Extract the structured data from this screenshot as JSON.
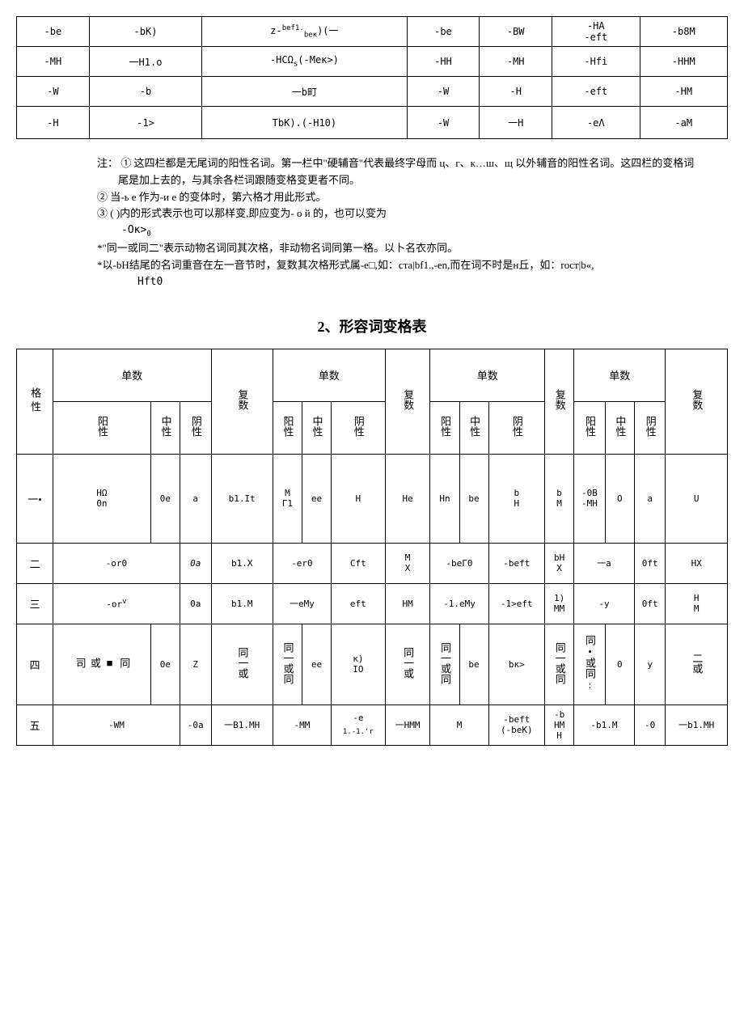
{
  "table1": {
    "rows": [
      [
        "-be",
        "-bK)",
        "z-<sup>bef1.</sup><sub>beк</sub>)(一",
        "-be",
        "-BW",
        "-HA\n-eft",
        "-b8M"
      ],
      [
        "-MH",
        "一H1.o",
        "-HCΩ<sub>s</sub>(-Meк>)",
        "-HH",
        "-MH",
        "-Hfi",
        "-HHM"
      ],
      [
        "-W",
        "-b",
        "一b町",
        "-W",
        "-H",
        "-eft",
        "-HM"
      ],
      [
        "-H",
        "-1>",
        "TbK).(-H10)",
        "-W",
        "一H",
        "-eΛ",
        "-aM"
      ]
    ]
  },
  "notes": {
    "n1": "注：  ① 这四栏都是无尾词的阳性名词。第一栏中\"硬辅音\"代表最终字母而 ц、г、к…ш、щ 以外辅音的阳性名词。这四栏的变格词尾是加上去的，与其余各栏词跟随变格变更者不同。",
    "n2": "② 当-ь е 作为-и е 的变体时，第六格才用此形式。",
    "n3": "③ ( )内的形式表示也可以那样变,即应变为- о й 的，也可以变为",
    "n3b": "-Ок><sub>0</sub>",
    "n4": "*\"同一或同二\"表示动物名词同其次格，非动物名词同第一格。以卜名衣亦同。",
    "n5": "*以-bH结尾的名词重音在左一音节时，复数其次格形式属-e□,如：cтa|bf1.,-en,而在词不时是н丘，如：rocт|b«,",
    "n6": "Hft0"
  },
  "title": "2、形容词变格表",
  "table2": {
    "header": {
      "ge": "格",
      "xing": "性",
      "danshu": "单数",
      "fushu": "复数",
      "yang": "阳性",
      "zhong": "中性",
      "yin": "阴性"
    },
    "rows": [
      {
        "c": "一•",
        "d": [
          "HΩ\n0n",
          "0e",
          "a",
          "b1.It",
          "M\nГ1",
          "ee",
          "H",
          "He",
          "Hn",
          "be",
          "b\nH",
          "b\nM",
          "-0B\n-MH",
          "O",
          "a",
          "U"
        ]
      },
      {
        "c": "二",
        "d": [
          "-or0",
          "",
          "0a",
          "b1.X",
          "-er0",
          "",
          "Cft",
          "M\nX",
          "-beГ0",
          "",
          "-beft",
          "bH\nX",
          "一a",
          "",
          "0ft",
          "HX"
        ]
      },
      {
        "c": "三",
        "d": [
          "-or<sup>v</sup>",
          "",
          "0a",
          "b1.M",
          "一eMy",
          "",
          "eft",
          "HM",
          "-1.eMy",
          "",
          "-1>eft",
          "1)\nMM",
          "-y",
          "",
          "0ft",
          "H\nM"
        ]
      },
      {
        "c": "四",
        "d": [
          "同\n■\n或\n司",
          "0e",
          "Z",
          "同一或",
          "同一或同",
          "ee",
          "к)\nIO",
          "同一或",
          "同一或同",
          "be",
          "bк>",
          "同一或同",
          "同•或同:",
          "0",
          "y",
          "二或"
        ]
      },
      {
        "c": "五",
        "d": [
          "-WM",
          "",
          "-0a",
          "一B1.MH",
          "-MM",
          "",
          "-e\n<sub>1.-1.'r</sub>",
          "一HMM",
          "M",
          "",
          "-beft\n(-beK)",
          "-b\nHM\nH",
          "-b1.M",
          "",
          "-0",
          "一b1.MH"
        ]
      }
    ]
  }
}
